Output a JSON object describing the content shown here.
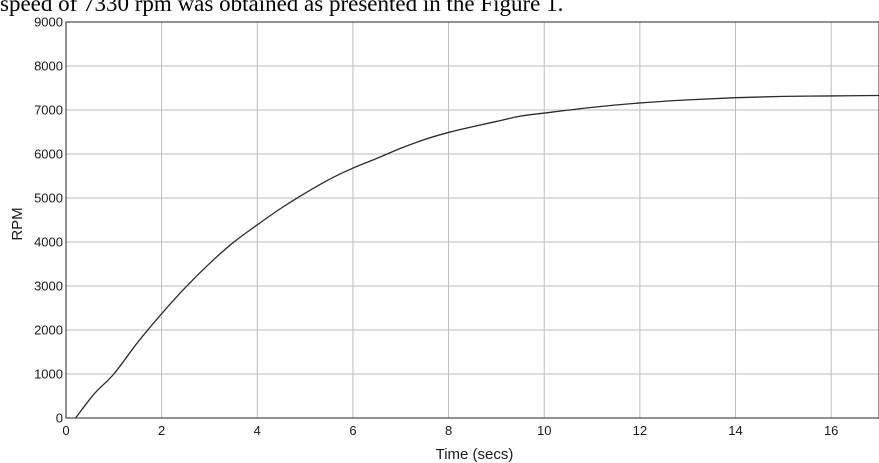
{
  "caption": "speed of 7330 rpm was obtained as presented in the Figure 1.",
  "chart_data": {
    "type": "line",
    "title": "",
    "xlabel": "Time (secs)",
    "ylabel": "RPM",
    "xlim": [
      0,
      17
    ],
    "ylim": [
      0,
      9000
    ],
    "xticks": [
      0,
      2,
      4,
      6,
      8,
      10,
      12,
      14,
      16
    ],
    "yticks": [
      0,
      1000,
      2000,
      3000,
      4000,
      5000,
      6000,
      7000,
      8000,
      9000
    ],
    "grid": true,
    "series": [
      {
        "x": [
          0.2,
          0.6,
          1,
          1.5,
          2,
          2.5,
          3,
          3.5,
          4,
          4.5,
          5,
          5.5,
          6,
          6.5,
          7,
          7.5,
          8,
          8.5,
          9,
          9.5,
          10,
          11,
          12,
          13,
          14,
          15,
          16,
          17
        ],
        "y": [
          0,
          560,
          1000,
          1720,
          2370,
          2970,
          3510,
          3990,
          4390,
          4770,
          5110,
          5420,
          5680,
          5900,
          6130,
          6330,
          6490,
          6620,
          6740,
          6860,
          6930,
          7060,
          7160,
          7230,
          7280,
          7310,
          7320,
          7330
        ]
      }
    ]
  }
}
